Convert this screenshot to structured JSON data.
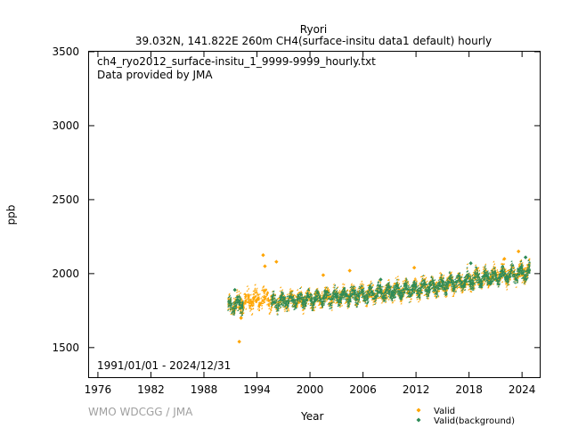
{
  "chart_data": {
    "type": "scatter",
    "title": "Ryori",
    "subtitle": "39.032N, 141.822E 260m    CH4(surface-insitu data1 default) hourly",
    "annotations": [
      "ch4_ryo2012_surface-insitu_1_9999-9999_hourly.txt",
      "Data provided by JMA"
    ],
    "date_range": "1991/01/01 - 2024/12/31",
    "xlabel": "Year",
    "ylabel": "ppb",
    "xlim": [
      1975,
      2026
    ],
    "ylim": [
      1300,
      3500
    ],
    "x_ticks": [
      "1976",
      "1982",
      "1988",
      "1994",
      "2000",
      "2006",
      "2012",
      "2018",
      "2024"
    ],
    "y_ticks": [
      "1500",
      "2000",
      "2500",
      "3000",
      "3500"
    ],
    "grid": false,
    "legend_position": "bottom-right",
    "series": [
      {
        "name": "Valid",
        "color": "#ffa500",
        "marker": "diamond",
        "segments": [
          {
            "x_start": 1990.8,
            "x_end": 1995.5,
            "baseline": [
              1770,
              1795,
              1810,
              1830,
              1840
            ],
            "spread": 80
          },
          {
            "x_start": 1995.5,
            "x_end": 2025.0,
            "baseline": [
              1800,
              1830,
              1860,
              1900,
              1960,
              2010
            ],
            "spread": 70
          }
        ],
        "outliers": [
          [
            1992.0,
            1540
          ],
          [
            1992.2,
            1700
          ],
          [
            1994.7,
            2125
          ],
          [
            1994.9,
            2050
          ],
          [
            1996.2,
            2080
          ],
          [
            2004.5,
            2020
          ],
          [
            2011.8,
            2040
          ],
          [
            2023.6,
            2150
          ],
          [
            2022.0,
            2100
          ],
          [
            2001.5,
            1990
          ]
        ]
      },
      {
        "name": "Valid(background)",
        "color": "#2e8b57",
        "marker": "diamond",
        "segments": [
          {
            "x_start": 1990.8,
            "x_end": 1992.5,
            "baseline": [
              1775,
              1790
            ],
            "spread": 60
          },
          {
            "x_start": 1995.7,
            "x_end": 2025.0,
            "baseline": [
              1800,
              1830,
              1860,
              1900,
              1960,
              2010
            ],
            "spread": 55
          }
        ],
        "outliers": [
          [
            2008.0,
            1960
          ],
          [
            2018.2,
            2070
          ],
          [
            2024.4,
            2110
          ],
          [
            1991.5,
            1890
          ]
        ]
      }
    ]
  },
  "watermark": "WMO WDCGG / JMA"
}
